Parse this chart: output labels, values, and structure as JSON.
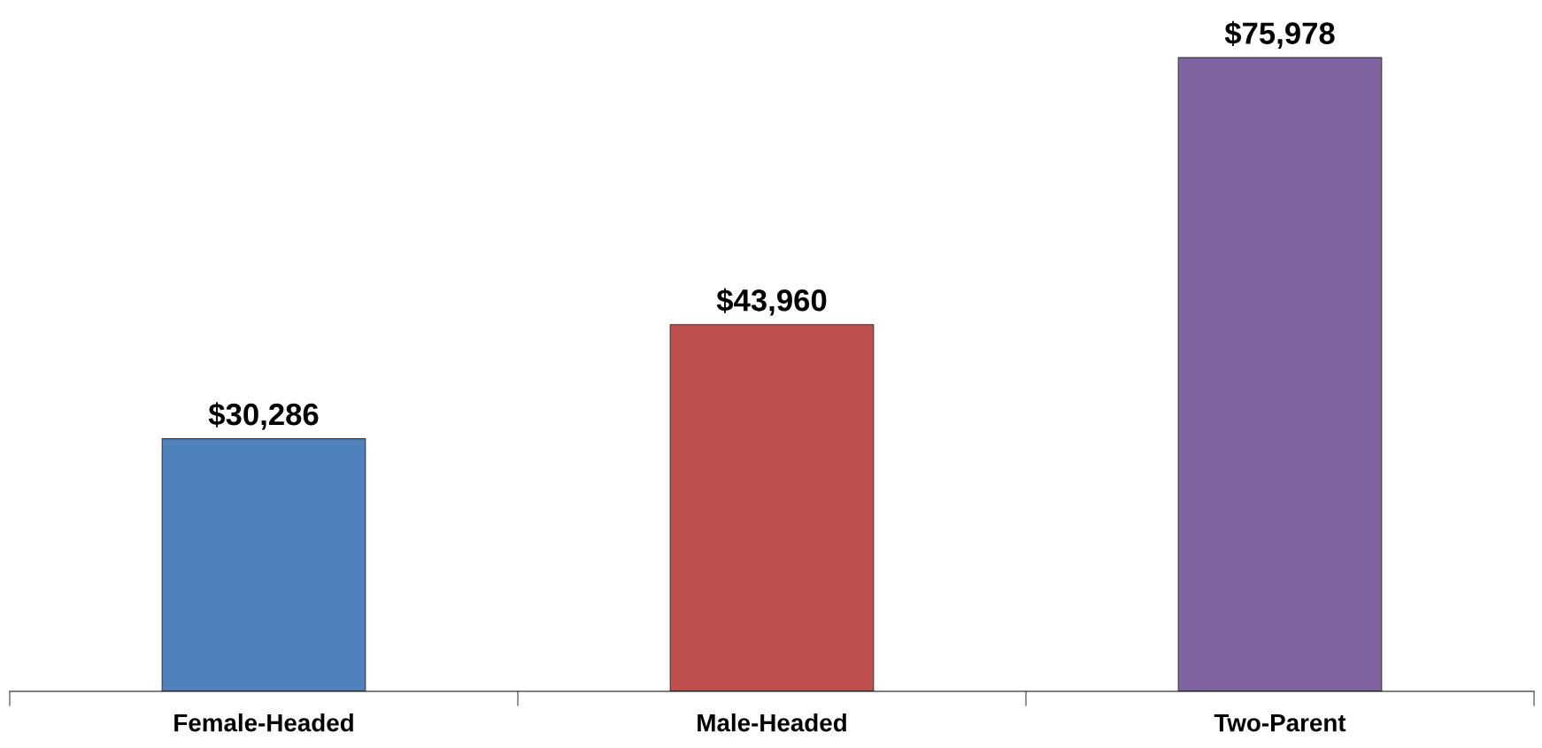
{
  "chart_data": {
    "type": "bar",
    "categories": [
      "Female-Headed",
      "Male-Headed",
      "Two-Parent"
    ],
    "values": [
      30286,
      43960,
      75978
    ],
    "colors": [
      "#4f81bd",
      "#c0504d",
      "#8064a2"
    ],
    "value_labels": [
      "$30,286",
      "$43,960",
      "$75,978"
    ],
    "grid": false,
    "legend": false
  }
}
